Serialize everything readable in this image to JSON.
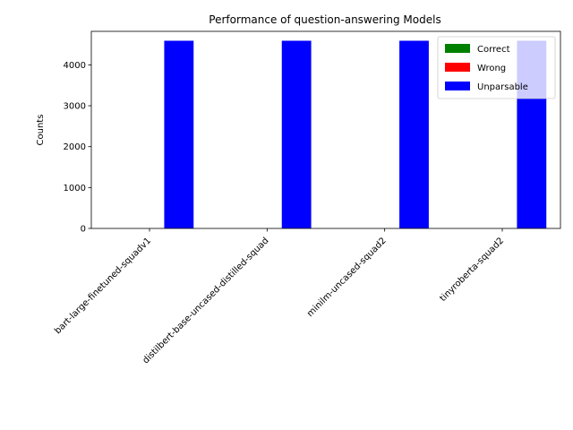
{
  "chart_data": {
    "type": "bar",
    "title": "Performance of question-answering Models",
    "xlabel": "",
    "ylabel": "Counts",
    "categories": [
      "bart-large-finetuned-squadv1",
      "distilbert-base-uncased-distilled-squad",
      "minilm-uncased-squad2",
      "tinyroberta-squad2"
    ],
    "series": [
      {
        "name": "Correct",
        "color": "#008000",
        "values": [
          0,
          0,
          0,
          0
        ]
      },
      {
        "name": "Wrong",
        "color": "#ff0000",
        "values": [
          0,
          0,
          0,
          0
        ]
      },
      {
        "name": "Unparsable",
        "color": "#0000ff",
        "values": [
          4590,
          4590,
          4590,
          4590
        ]
      }
    ],
    "ylim": [
      0,
      4819.5
    ],
    "yticks": [
      0,
      1000,
      2000,
      3000,
      4000
    ],
    "ytick_labels": [
      "0",
      "1000",
      "2000",
      "3000",
      "4000"
    ],
    "grid": false,
    "legend_position": "top-right"
  }
}
